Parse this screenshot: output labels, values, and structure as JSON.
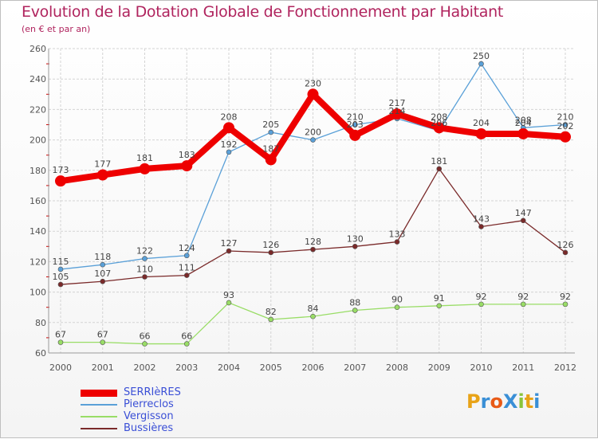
{
  "header": {
    "title": "Evolution de la Dotation Globale de Fonctionnement par Habitant",
    "subtitle": "(en € et par an)"
  },
  "logo": {
    "text": "ProXiti",
    "colors": [
      "#e8a317",
      "#3a8fd6",
      "#e85a17",
      "#3a8fd6",
      "#8ac43a",
      "#e8a317",
      "#3a8fd6"
    ]
  },
  "chart_data": {
    "type": "line",
    "x": [
      "2000",
      "2001",
      "2002",
      "2003",
      "2004",
      "2005",
      "2006",
      "2007",
      "2008",
      "2009",
      "2010",
      "2011",
      "2012"
    ],
    "ylim": [
      60,
      260
    ],
    "yticks": [
      "60",
      "80",
      "100",
      "120",
      "140",
      "160",
      "180",
      "200",
      "220",
      "240",
      "260"
    ],
    "grid": true,
    "legend_position": "bottom-left",
    "series": [
      {
        "name": "SERRIèRES",
        "color": "#ee0000",
        "values": [
          173,
          177,
          181,
          183,
          208,
          187,
          230,
          203,
          217,
          208,
          204,
          204,
          202
        ]
      },
      {
        "name": "Pierreclos",
        "color": "#5aa0d8",
        "values": [
          115,
          118,
          122,
          124,
          192,
          205,
          200,
          210,
          214,
          206,
          250,
          208,
          210
        ]
      },
      {
        "name": "Vergisson",
        "color": "#99dd66",
        "values": [
          67,
          67,
          66,
          66,
          93,
          82,
          84,
          88,
          90,
          91,
          92,
          92,
          92
        ]
      },
      {
        "name": "Bussières",
        "color": "#7a2a2a",
        "values": [
          105,
          107,
          110,
          111,
          127,
          126,
          128,
          130,
          133,
          181,
          143,
          147,
          126
        ]
      }
    ]
  }
}
